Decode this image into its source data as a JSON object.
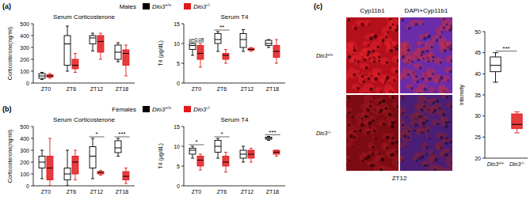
{
  "chart_data": [
    {
      "type": "box",
      "panel_label": "(a)",
      "subtitle": "Males",
      "legend": "top",
      "title": "Serum Corticosterone",
      "y_label": "Corticosterone(ng/ml)",
      "categories": [
        "ZT0",
        "ZT6",
        "ZT12",
        "ZT18"
      ],
      "ylim": [
        0,
        500
      ],
      "yticks": [
        0,
        100,
        200,
        300,
        400,
        500
      ],
      "series": [
        {
          "name": "Dio3+/+",
          "color": "#000000",
          "boxes": [
            {
              "min": 30,
              "q1": 40,
              "median": 60,
              "q3": 80,
              "max": 90
            },
            {
              "min": 100,
              "q1": 150,
              "median": 330,
              "q3": 400,
              "max": 480
            },
            {
              "min": 270,
              "q1": 330,
              "median": 380,
              "q3": 400,
              "max": 420
            },
            {
              "min": 180,
              "q1": 200,
              "median": 260,
              "q3": 320,
              "max": 340
            }
          ]
        },
        {
          "name": "Dio3-/-",
          "color": "#e3191c",
          "boxes": [
            {
              "min": 40,
              "q1": 50,
              "median": 60,
              "q3": 70,
              "max": 80
            },
            {
              "min": 90,
              "q1": 120,
              "median": 150,
              "q3": 200,
              "max": 250
            },
            {
              "min": 200,
              "q1": 260,
              "median": 350,
              "q3": 400,
              "max": 420
            },
            {
              "min": 60,
              "q1": 150,
              "median": 250,
              "q3": 280,
              "max": 320
            }
          ]
        }
      ],
      "annotations": []
    },
    {
      "type": "box",
      "title": "Serum T4",
      "y_label": "T4 (μg/dL)",
      "categories": [
        "ZT0",
        "ZT6",
        "ZT12",
        "ZT18"
      ],
      "ylim": [
        0,
        15
      ],
      "yticks": [
        0,
        5,
        10,
        15
      ],
      "series": [
        {
          "name": "Dio3+/+",
          "color": "#000000",
          "boxes": [
            {
              "min": 7,
              "q1": 8.5,
              "median": 9.5,
              "q3": 10,
              "max": 10
            },
            {
              "min": 8,
              "q1": 10,
              "median": 11,
              "q3": 12.5,
              "max": 13
            },
            {
              "min": 8,
              "q1": 9,
              "median": 11,
              "q3": 12.5,
              "max": 13.5
            },
            {
              "min": 9,
              "q1": 9.5,
              "median": 10,
              "q3": 10.8,
              "max": 11
            }
          ]
        },
        {
          "name": "Dio3-/-",
          "color": "#e3191c",
          "boxes": [
            {
              "min": 4,
              "q1": 6,
              "median": 7.5,
              "q3": 9.5,
              "max": 10
            },
            {
              "min": 5,
              "q1": 6,
              "median": 7,
              "q3": 7.5,
              "max": 8.5
            },
            {
              "min": 8,
              "q1": 8.3,
              "median": 8.5,
              "q3": 8.8,
              "max": 9
            },
            {
              "min": 5,
              "q1": 6.5,
              "median": 8,
              "q3": 9.5,
              "max": 11
            }
          ]
        }
      ],
      "annotations": [
        {
          "text": "p=0.08",
          "category": "ZT0"
        },
        {
          "text": "**",
          "category": "ZT6"
        }
      ]
    },
    {
      "type": "box",
      "panel_label": "(b)",
      "subtitle": "Females",
      "legend": "top",
      "title": "Serum Corticosterone",
      "y_label": "Corticosterone(ng/ml)",
      "categories": [
        "ZT0",
        "ZT6",
        "ZT12",
        "ZT18"
      ],
      "ylim": [
        0,
        500
      ],
      "yticks": [
        0,
        100,
        200,
        300,
        400,
        500
      ],
      "series": [
        {
          "name": "Dio3+/+",
          "color": "#000000",
          "boxes": [
            {
              "min": 60,
              "q1": 150,
              "median": 200,
              "q3": 250,
              "max": 300
            },
            {
              "min": 0,
              "q1": 50,
              "median": 100,
              "q3": 150,
              "max": 300
            },
            {
              "min": 60,
              "q1": 150,
              "median": 250,
              "q3": 330,
              "max": 400
            },
            {
              "min": 250,
              "q1": 280,
              "median": 320,
              "q3": 380,
              "max": 400
            }
          ]
        },
        {
          "name": "Dio3-/-",
          "color": "#e3191c",
          "boxes": [
            {
              "min": 0,
              "q1": 50,
              "median": 150,
              "q3": 250,
              "max": 400
            },
            {
              "min": 50,
              "q1": 100,
              "median": 200,
              "q3": 250,
              "max": 300
            },
            {
              "min": 90,
              "q1": 100,
              "median": 115,
              "q3": 120,
              "max": 130
            },
            {
              "min": 20,
              "q1": 50,
              "median": 80,
              "q3": 120,
              "max": 150
            }
          ]
        }
      ],
      "annotations": [
        {
          "text": "*",
          "category": "ZT12"
        },
        {
          "text": "***",
          "category": "ZT18"
        }
      ]
    },
    {
      "type": "box",
      "title": "Serum T4",
      "y_label": "T4 (μg/dL)",
      "categories": [
        "ZT0",
        "ZT6",
        "ZT12",
        "ZT18"
      ],
      "ylim": [
        0,
        15
      ],
      "yticks": [
        0,
        5,
        10,
        15
      ],
      "series": [
        {
          "name": "Dio3+/+",
          "color": "#000000",
          "boxes": [
            {
              "min": 7,
              "q1": 8,
              "median": 9,
              "q3": 9.5,
              "max": 10
            },
            {
              "min": 7,
              "q1": 8.5,
              "median": 10,
              "q3": 11.5,
              "max": 12
            },
            {
              "min": 6,
              "q1": 7,
              "median": 8,
              "q3": 9,
              "max": 10
            },
            {
              "min": 11.5,
              "q1": 11.8,
              "median": 12,
              "q3": 12.3,
              "max": 12.5
            }
          ]
        },
        {
          "name": "Dio3-/-",
          "color": "#e3191c",
          "boxes": [
            {
              "min": 4,
              "q1": 5,
              "median": 6.5,
              "q3": 7.5,
              "max": 8
            },
            {
              "min": 3.5,
              "q1": 5,
              "median": 6,
              "q3": 7.5,
              "max": 8.5
            },
            {
              "min": 6,
              "q1": 7,
              "median": 8,
              "q3": 9,
              "max": 9.5
            },
            {
              "min": 7.5,
              "q1": 8,
              "median": 8.5,
              "q3": 9,
              "max": 9
            }
          ]
        }
      ],
      "annotations": [
        {
          "text": "*",
          "category": "ZT0"
        },
        {
          "text": "*",
          "category": "ZT6"
        },
        {
          "text": "***",
          "category": "ZT18"
        }
      ]
    },
    {
      "type": "box",
      "y_label": "Intensity",
      "categories": [
        "Dio3+/+",
        "Dio3-/-"
      ],
      "ylim": [
        20,
        50
      ],
      "yticks": [
        20,
        25,
        30,
        35,
        40,
        45,
        50
      ],
      "series": [
        {
          "colors": [
            "#000000",
            "#e3191c"
          ],
          "boxes": [
            {
              "min": 38,
              "q1": 40.5,
              "median": 42,
              "q3": 44,
              "max": 45
            },
            {
              "min": 26,
              "q1": 27,
              "median": 28,
              "q3": 30.5,
              "max": 31
            }
          ]
        }
      ],
      "annotations": [
        {
          "text": "***"
        }
      ]
    }
  ],
  "image_panel": {
    "label": "(c)",
    "columns": [
      "Cyp11b1",
      "DAPI+Cyp11b1"
    ],
    "rows": [
      "Dio3+/+",
      "Dio3-/-"
    ],
    "caption": "ZT12"
  }
}
